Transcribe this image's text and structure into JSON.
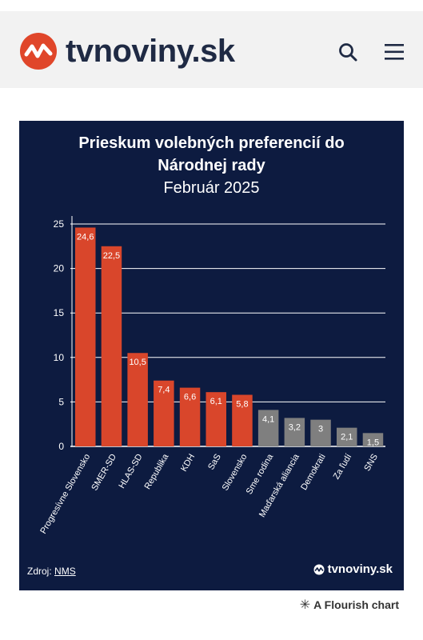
{
  "header": {
    "logo_text": "tvnoviny.sk",
    "brand_color": "#e0462a"
  },
  "card": {
    "source_label": "Zdroj:",
    "source_link": "NMS",
    "brand_text": "tvnoviny.sk"
  },
  "footer": {
    "flourish_text": "A Flourish chart"
  },
  "chart_data": {
    "type": "bar",
    "title_line1": "Prieskum volebných preferencií do",
    "title_line2": "Národnej rady",
    "subtitle": "Február 2025",
    "categories": [
      "Progresívne Slovensko",
      "SMER-SD",
      "HLAS-SD",
      "Republika",
      "KDH",
      "SaS",
      "Slovensko",
      "Sme rodina",
      "Maďarská aliancia",
      "Demokrati",
      "Za ľudí",
      "SNS"
    ],
    "values": [
      24.6,
      22.5,
      10.5,
      7.4,
      6.6,
      6.1,
      5.8,
      4.1,
      3.2,
      3,
      2.1,
      1.5
    ],
    "value_labels": [
      "24,6",
      "22,5",
      "10,5",
      "7,4",
      "6,6",
      "6,1",
      "5,8",
      "4,1",
      "3,2",
      "3",
      "2,1",
      "1,5"
    ],
    "yticks": [
      "0",
      "5",
      "10",
      "15",
      "20",
      "25"
    ],
    "ylim": [
      0,
      25
    ],
    "grid": true,
    "colors": {
      "highlight": "#d9462b",
      "muted": "#7f7f7f",
      "background": "#0d1b40",
      "grid": "#ffffff"
    },
    "highlight_count": 7
  }
}
